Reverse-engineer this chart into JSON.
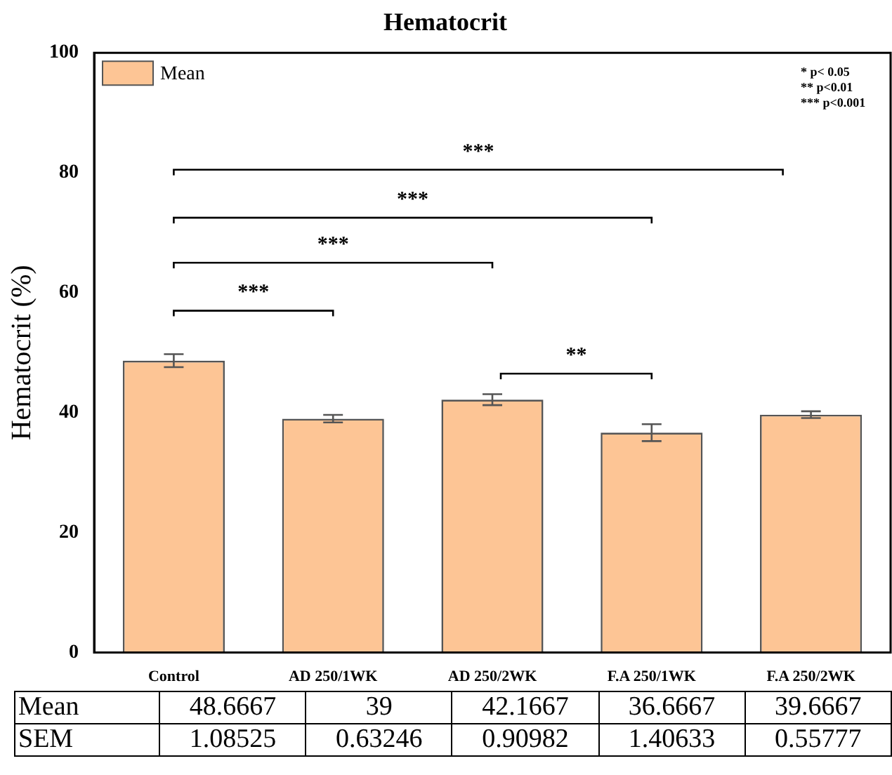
{
  "chart_data": {
    "type": "bar",
    "title": "Hematocrit",
    "ylabel": "Hematocrit (%)",
    "categories": [
      "Control",
      "AD 250/1WK",
      "AD 250/2WK",
      "F.A 250/1WK",
      "F.A 250/2WK"
    ],
    "series": [
      {
        "name": "Mean",
        "color": "#fdc595",
        "values": [
          48.6667,
          39,
          42.1667,
          36.6667,
          39.6667
        ],
        "errors": [
          1.08525,
          0.63246,
          0.90982,
          1.40633,
          0.55777
        ]
      }
    ],
    "ylim": [
      0,
      100
    ],
    "yticks": [
      0,
      20,
      40,
      60,
      80,
      100
    ],
    "grid": false,
    "legend": "top left",
    "data_labels": true,
    "annotations": [
      "* p< 0.05",
      "** p<0.01",
      "*** p<0.001",
      "***",
      "***",
      "***",
      "***",
      "**",
      "SEM",
      "1.08525",
      "0.63246",
      "0.90982",
      "1.40633",
      "0.55777"
    ]
  }
}
